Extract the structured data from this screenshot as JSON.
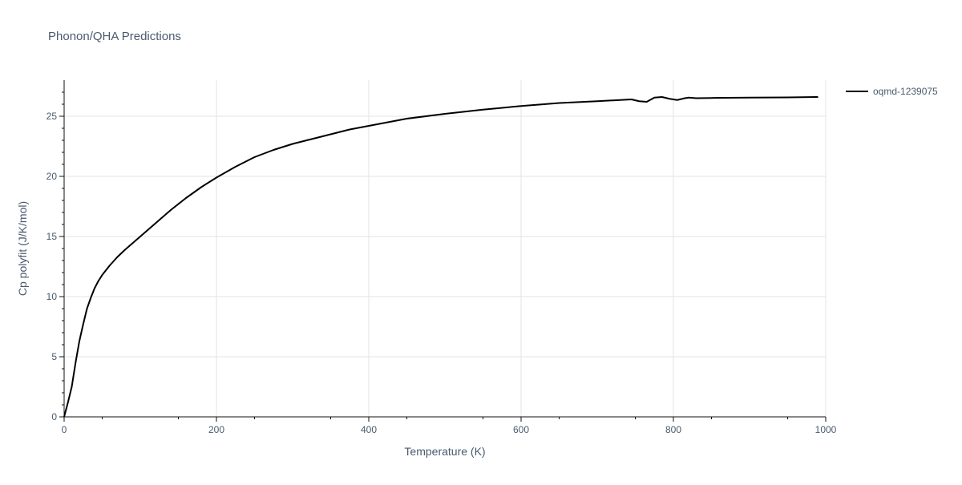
{
  "chart_data": {
    "type": "line",
    "title": "Phonon/QHA Predictions",
    "xlabel": "Temperature (K)",
    "ylabel": "Cp polyfit (J/K/mol)",
    "xlim": [
      0,
      1000
    ],
    "ylim": [
      0,
      28
    ],
    "x_ticks": [
      0,
      200,
      400,
      600,
      800,
      1000
    ],
    "x_tick_labels": [
      "0",
      "200",
      "400",
      "600",
      "800",
      "1000"
    ],
    "y_ticks": [
      0,
      5,
      10,
      15,
      20,
      25
    ],
    "y_tick_labels": [
      "0",
      "5",
      "10",
      "15",
      "20",
      "25"
    ],
    "grid": true,
    "legend_position": "top-right",
    "series": [
      {
        "name": "oqmd-1239075",
        "color": "#000000",
        "x": [
          0,
          5,
          10,
          15,
          20,
          25,
          30,
          35,
          40,
          45,
          50,
          60,
          70,
          80,
          100,
          120,
          140,
          160,
          180,
          200,
          225,
          250,
          275,
          300,
          325,
          350,
          375,
          400,
          450,
          500,
          550,
          600,
          650,
          700,
          745,
          755,
          765,
          775,
          785,
          795,
          805,
          815,
          820,
          830,
          850,
          900,
          950,
          990
        ],
        "y": [
          0,
          1.2,
          2.5,
          4.5,
          6.3,
          7.7,
          9.0,
          9.9,
          10.7,
          11.3,
          11.8,
          12.6,
          13.3,
          13.9,
          15.0,
          16.1,
          17.2,
          18.2,
          19.1,
          19.9,
          20.8,
          21.6,
          22.2,
          22.7,
          23.1,
          23.5,
          23.9,
          24.2,
          24.8,
          25.2,
          25.55,
          25.85,
          26.1,
          26.25,
          26.4,
          26.25,
          26.2,
          26.55,
          26.6,
          26.45,
          26.35,
          26.5,
          26.55,
          26.5,
          26.52,
          26.55,
          26.57,
          26.6
        ]
      }
    ]
  }
}
